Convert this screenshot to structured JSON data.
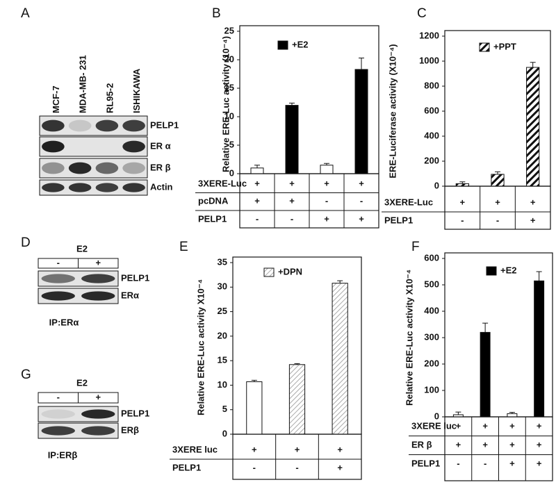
{
  "chart_data": [
    {
      "type": "bar",
      "panel": "B",
      "ylabel": "Relative ERE-Luc activity (10⁻⁴)",
      "legend": "+E2",
      "legend_fill": "black",
      "values": [
        1,
        12,
        1.5,
        18.3
      ],
      "errors": [
        0.5,
        0.4,
        0.3,
        2
      ],
      "fills": [
        "white",
        "black",
        "white",
        "black"
      ],
      "ylim": [
        0,
        25
      ],
      "yticks": [
        0,
        5,
        10,
        15,
        20,
        25
      ],
      "table": [
        {
          "label": "3XERE-Luc",
          "cells": [
            "+",
            "+",
            "+",
            "+"
          ]
        },
        {
          "label": "pcDNA",
          "cells": [
            "+",
            "+",
            "-",
            "-"
          ]
        },
        {
          "label": "PELP1",
          "cells": [
            "-",
            "-",
            "+",
            "+"
          ]
        }
      ]
    },
    {
      "type": "bar",
      "panel": "C",
      "ylabel": "ERE-Luciferase activity (X10⁻⁴)",
      "legend": "+PPT",
      "legend_fill": "hatch",
      "values": [
        20,
        95,
        950
      ],
      "errors": [
        15,
        20,
        40
      ],
      "fills": [
        "hatch",
        "hatch",
        "hatch"
      ],
      "ylim": [
        0,
        1200
      ],
      "yticks": [
        0,
        200,
        400,
        600,
        800,
        1000,
        1200
      ],
      "table": [
        {
          "label": "3XERE-Luc",
          "cells": [
            "+",
            "+",
            "+"
          ]
        },
        {
          "label": "PELP1",
          "cells": [
            "-",
            "-",
            "+"
          ]
        }
      ]
    },
    {
      "type": "bar",
      "panel": "E",
      "ylabel": "Relative ERE-Luc activity X10⁻⁴",
      "legend": "+DPN",
      "legend_fill": "lighthatch",
      "values": [
        10.7,
        14.2,
        30.8
      ],
      "errors": [
        0.3,
        0.2,
        0.5
      ],
      "fills": [
        "white",
        "lighthatch",
        "lighthatch"
      ],
      "ylim": [
        0,
        35
      ],
      "yticks": [
        0,
        5,
        10,
        15,
        20,
        25,
        30,
        35
      ],
      "table": [
        {
          "label": "3XERE luc",
          "cells": [
            "+",
            "+",
            "+"
          ]
        },
        {
          "label": "PELP1",
          "cells": [
            "-",
            "-",
            "+"
          ]
        }
      ]
    },
    {
      "type": "bar",
      "panel": "F",
      "ylabel": "Relative ERE-Luc activity X10⁻⁴",
      "legend": "+E2",
      "legend_fill": "black",
      "values": [
        8,
        320,
        12,
        515
      ],
      "errors": [
        10,
        35,
        5,
        35
      ],
      "fills": [
        "white",
        "black",
        "white",
        "black"
      ],
      "ylim": [
        0,
        600
      ],
      "yticks": [
        0,
        100,
        200,
        300,
        400,
        500,
        600
      ],
      "table": [
        {
          "label": "3XERE luc",
          "cells": [
            "+",
            "+",
            "+",
            "+"
          ]
        },
        {
          "label": "ER β",
          "cells": [
            "+",
            "+",
            "+",
            "+"
          ]
        },
        {
          "label": "PELP1",
          "cells": [
            "-",
            "-",
            "+",
            "+"
          ]
        }
      ]
    }
  ],
  "blots": [
    {
      "panel": "A",
      "lanes": [
        "MCF-7",
        "MDA-MB- 231",
        "RL95-2",
        "ISHIKAWA"
      ],
      "rows": [
        "PELP1",
        "ER α",
        "ER β",
        "Actin"
      ]
    },
    {
      "panel": "D",
      "treatment": "E2",
      "lanes": [
        "-",
        "+"
      ],
      "rows": [
        "PELP1",
        "ERα"
      ],
      "caption": "IP:ERα"
    },
    {
      "panel": "G",
      "treatment": "E2",
      "lanes": [
        "-",
        "+"
      ],
      "rows": [
        "PELP1",
        "ERβ"
      ],
      "caption": "IP:ERβ"
    }
  ]
}
